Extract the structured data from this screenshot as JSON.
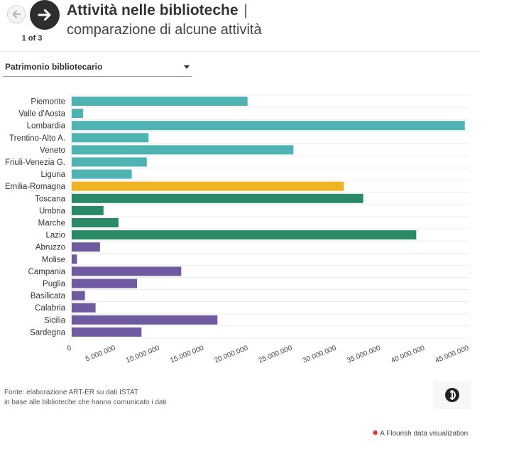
{
  "nav": {
    "counter": "1 of 3"
  },
  "header": {
    "title": "Attività nelle biblioteche",
    "separator": "|",
    "subtitle": "comparazione di alcune attività"
  },
  "dropdown": {
    "selected": "Patrimonio bibliotecario"
  },
  "chart_data": {
    "type": "bar",
    "orientation": "horizontal",
    "title": "Patrimonio bibliotecario",
    "categories": [
      "Piemonte",
      "Valle d'Aosta",
      "Lombardia",
      "Trentino-Alto A.",
      "Veneto",
      "Friuli-Venezia G.",
      "Liguria",
      "Emilia-Romagna",
      "Toscana",
      "Umbria",
      "Marche",
      "Lazio",
      "Abruzzo",
      "Molise",
      "Campania",
      "Puglia",
      "Basilicata",
      "Calabria",
      "Sicilia",
      "Sardegna"
    ],
    "values": [
      19900000,
      1300000,
      44500000,
      8700000,
      25100000,
      8500000,
      6800000,
      30800000,
      33000000,
      3600000,
      5300000,
      39000000,
      3200000,
      600000,
      12400000,
      7400000,
      1500000,
      2700000,
      16500000,
      7900000
    ],
    "colors": [
      "#4fb3b1",
      "#4fb3b1",
      "#4fb3b1",
      "#4fb3b1",
      "#4fb3b1",
      "#4fb3b1",
      "#4fb3b1",
      "#f0b323",
      "#2a8a66",
      "#2a8a66",
      "#2a8a66",
      "#2a8a66",
      "#6f59a0",
      "#6f59a0",
      "#6f59a0",
      "#6f59a0",
      "#6f59a0",
      "#6f59a0",
      "#6f59a0",
      "#6f59a0"
    ],
    "xlim": [
      0,
      45000000
    ],
    "ticks": [
      0,
      5000000,
      10000000,
      15000000,
      20000000,
      25000000,
      30000000,
      35000000,
      40000000,
      45000000
    ],
    "tick_labels": [
      "0",
      "5.000.000",
      "10.000.000",
      "15.000.000",
      "20.000.000",
      "25.000.000",
      "30.000.000",
      "35.000.000",
      "40.000.000",
      "45.000.000"
    ],
    "grid": "horizontal separators"
  },
  "footer": {
    "source_line1": "Fonte: elaborazione ART-ER su dati ISTAT",
    "source_line2": "in base alle biblioteche che hanno comunicato i dati",
    "credit": "A Flourish data visualization"
  }
}
